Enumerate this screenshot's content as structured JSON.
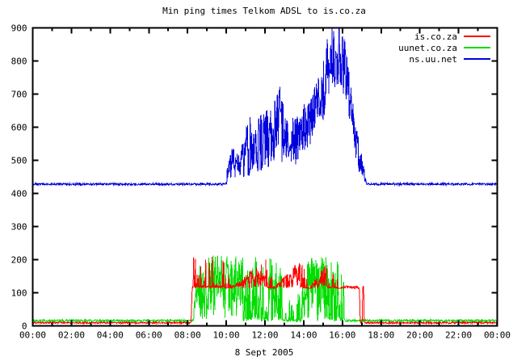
{
  "chart_data": {
    "type": "line",
    "title": "Min ping times Telkom ADSL to is.co.za",
    "xlabel": "8 Sept 2005",
    "ylabel": "",
    "unit": "ms",
    "xlim_hours": [
      0,
      24
    ],
    "ylim": [
      0,
      900
    ],
    "grid": false,
    "legend_position": "top-right-inside",
    "x_ticks": [
      {
        "h": 0,
        "label": "00:00"
      },
      {
        "h": 2,
        "label": "02:00"
      },
      {
        "h": 4,
        "label": "04:00"
      },
      {
        "h": 6,
        "label": "06:00"
      },
      {
        "h": 8,
        "label": "08:00"
      },
      {
        "h": 10,
        "label": "10:00"
      },
      {
        "h": 12,
        "label": "12:00"
      },
      {
        "h": 14,
        "label": "14:00"
      },
      {
        "h": 16,
        "label": "16:00"
      },
      {
        "h": 18,
        "label": "18:00"
      },
      {
        "h": 20,
        "label": "20:00"
      },
      {
        "h": 22,
        "label": "22:00"
      },
      {
        "h": 24,
        "label": "00:00"
      }
    ],
    "x_minor_step_hours": 1,
    "y_ticks": [
      0,
      100,
      200,
      300,
      400,
      500,
      600,
      700,
      800,
      900
    ],
    "series": [
      {
        "name": "uunet.co.za",
        "color": "#00dd00",
        "envelope": [
          [
            0,
            13,
            19,
            1
          ],
          [
            8.3,
            13,
            19,
            1
          ],
          [
            8.38,
            14,
            110,
            1
          ],
          [
            8.65,
            15,
            195,
            1
          ],
          [
            9.0,
            20,
            215,
            1
          ],
          [
            10.0,
            18,
            212,
            1
          ],
          [
            10.7,
            16,
            215,
            1
          ],
          [
            10.78,
            14,
            215,
            0.55
          ],
          [
            11.5,
            14,
            212,
            0.55
          ],
          [
            12.2,
            14,
            210,
            0.55
          ],
          [
            12.85,
            14,
            205,
            0.3
          ],
          [
            12.95,
            13,
            95,
            0.3
          ],
          [
            13.5,
            13,
            90,
            0.3
          ],
          [
            13.88,
            13,
            110,
            0.3
          ],
          [
            13.96,
            16,
            212,
            1
          ],
          [
            14.7,
            15,
            210,
            1
          ],
          [
            15.25,
            14,
            212,
            0.5
          ],
          [
            15.8,
            14,
            205,
            0.5
          ],
          [
            16.12,
            14,
            150,
            0.4
          ],
          [
            16.18,
            13,
            19,
            1
          ],
          [
            24,
            13,
            19,
            1
          ]
        ]
      },
      {
        "name": "is.co.za",
        "color": "#ff0000",
        "envelope": [
          [
            0,
            7,
            12,
            1
          ],
          [
            8.18,
            7,
            12,
            1
          ],
          [
            8.24,
            112,
            124,
            1
          ],
          [
            8.32,
            114,
            228,
            0.3
          ],
          [
            9.15,
            114,
            220,
            0.3
          ],
          [
            9.8,
            114,
            205,
            0.3
          ],
          [
            10.35,
            113,
            122,
            1
          ],
          [
            12.05,
            114,
            205,
            0.25
          ],
          [
            12.55,
            113,
            122,
            1
          ],
          [
            13.85,
            114,
            205,
            0.25
          ],
          [
            14.35,
            113,
            122,
            1
          ],
          [
            15.2,
            114,
            195,
            0.2
          ],
          [
            15.95,
            113,
            122,
            1
          ],
          [
            16.88,
            113,
            120,
            1
          ],
          [
            16.92,
            7,
            12,
            1
          ],
          [
            17.02,
            7,
            12,
            1
          ],
          [
            17.05,
            112,
            122,
            1
          ],
          [
            17.1,
            112,
            122,
            1
          ],
          [
            17.13,
            7,
            12,
            1
          ],
          [
            24,
            7,
            12,
            1
          ]
        ]
      },
      {
        "name": "ns.uu.net",
        "color": "#0000dd",
        "envelope": [
          [
            0,
            425,
            431,
            1
          ],
          [
            9.95,
            425,
            431,
            1
          ],
          [
            10.1,
            432,
            500,
            1
          ],
          [
            10.35,
            440,
            545,
            1
          ],
          [
            10.6,
            436,
            520,
            1
          ],
          [
            10.9,
            442,
            565,
            1
          ],
          [
            11.2,
            450,
            635,
            1
          ],
          [
            11.5,
            455,
            600,
            1
          ],
          [
            11.8,
            465,
            645,
            1
          ],
          [
            12.1,
            478,
            660,
            1
          ],
          [
            12.4,
            488,
            650,
            1
          ],
          [
            12.75,
            495,
            775,
            1
          ],
          [
            13.0,
            488,
            645,
            1
          ],
          [
            13.3,
            498,
            655,
            1
          ],
          [
            13.6,
            478,
            622,
            1
          ],
          [
            13.9,
            518,
            662,
            1
          ],
          [
            14.2,
            538,
            685,
            1
          ],
          [
            14.5,
            558,
            722,
            1
          ],
          [
            14.8,
            578,
            762,
            1
          ],
          [
            15.05,
            615,
            822,
            1
          ],
          [
            15.25,
            645,
            880,
            1
          ],
          [
            15.45,
            700,
            900,
            1
          ],
          [
            15.75,
            730,
            900,
            1
          ],
          [
            16.0,
            705,
            900,
            1
          ],
          [
            16.15,
            680,
            885,
            1
          ],
          [
            16.3,
            620,
            805,
            1
          ],
          [
            16.5,
            560,
            705,
            1
          ],
          [
            16.7,
            500,
            625,
            1
          ],
          [
            16.9,
            458,
            545,
            1
          ],
          [
            17.1,
            434,
            482,
            1
          ],
          [
            17.28,
            425,
            432,
            1
          ],
          [
            24,
            425,
            431,
            1
          ]
        ]
      }
    ],
    "legend": [
      {
        "label": "is.co.za",
        "color": "#ff0000"
      },
      {
        "label": "uunet.co.za",
        "color": "#00dd00"
      },
      {
        "label": "ns.uu.net",
        "color": "#0000dd"
      }
    ]
  }
}
